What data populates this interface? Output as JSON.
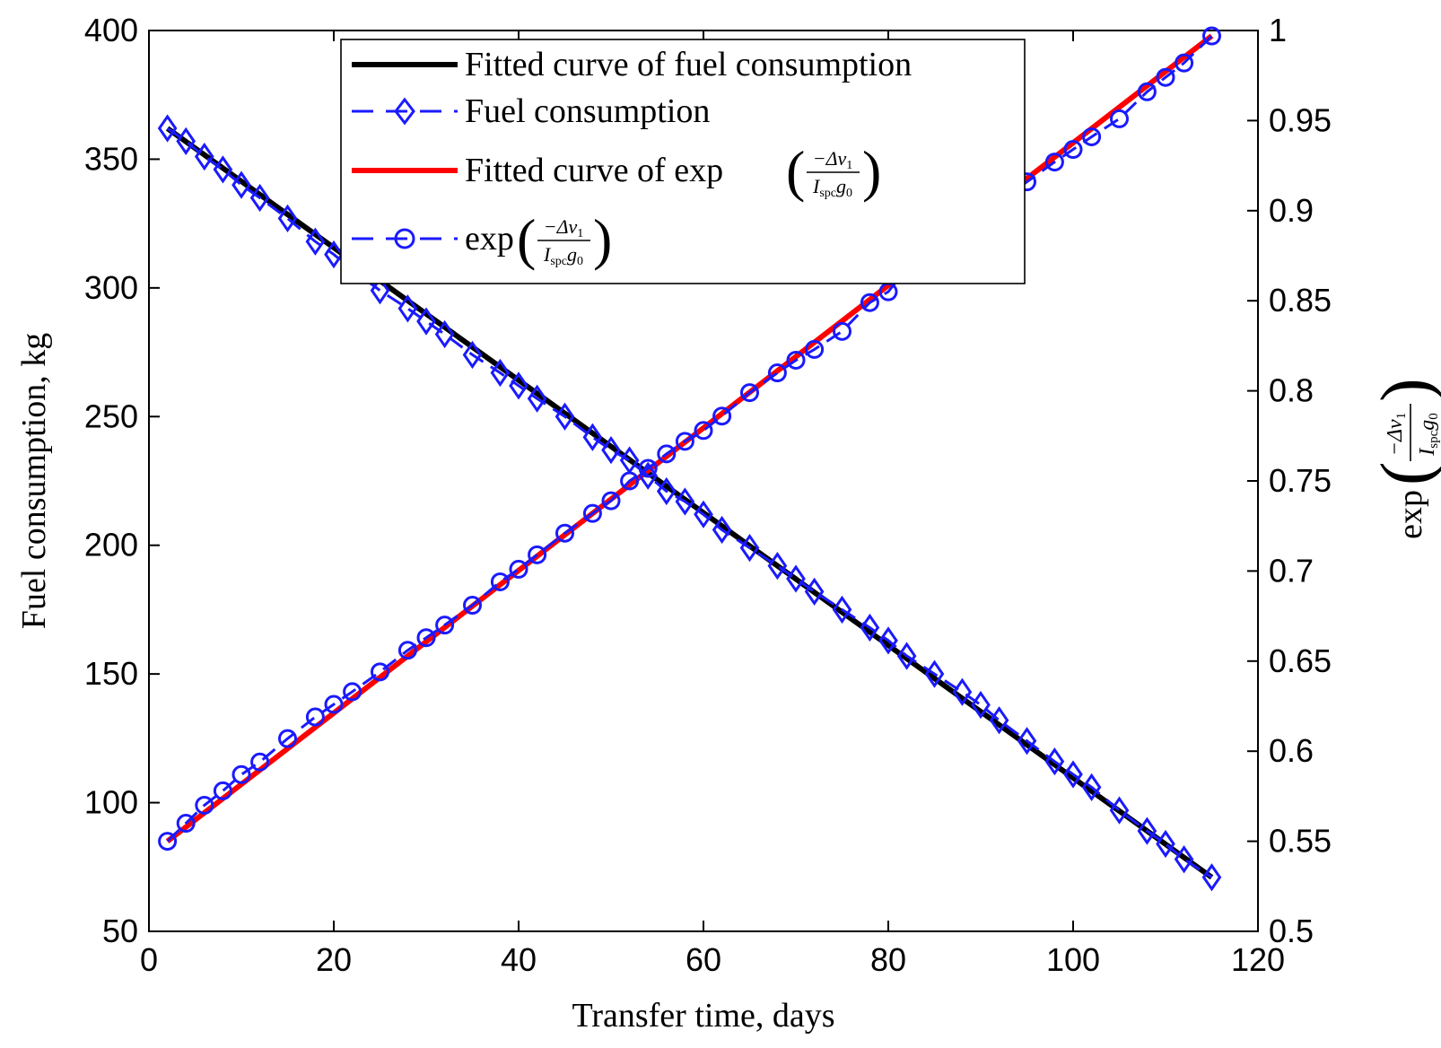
{
  "chart_data": {
    "type": "line",
    "xlabel": "Transfer time, days",
    "ylabel_left": "Fuel consumption, kg",
    "ylabel_right": "exp",
    "xlim": [
      0,
      120
    ],
    "ylim_left": [
      50,
      400
    ],
    "ylim_right": [
      0.5,
      1.0
    ],
    "x_ticks": [
      "0",
      "20",
      "40",
      "60",
      "80",
      "100",
      "120"
    ],
    "y_left_ticks": [
      "50",
      "100",
      "150",
      "200",
      "250",
      "300",
      "350",
      "400"
    ],
    "y_right_ticks": [
      "0.5",
      "0.55",
      "0.6",
      "0.65",
      "0.7",
      "0.75",
      "0.8",
      "0.85",
      "0.9",
      "0.95",
      "1"
    ],
    "grid": false,
    "legend_position": "top-center",
    "legend": [
      {
        "label": "Fitted curve of fuel consumption",
        "style": "solid",
        "color": "#000000",
        "marker": "none"
      },
      {
        "label": "Fuel consumption",
        "style": "dashed",
        "color": "#1a1aff",
        "marker": "diamond"
      },
      {
        "label": "Fitted curve of exp",
        "style": "solid",
        "color": "#ff0000",
        "marker": "none"
      },
      {
        "label": "exp",
        "style": "dashed",
        "color": "#1a1aff",
        "marker": "circle"
      }
    ],
    "math": {
      "numerator": "−Δv",
      "sub1": "1",
      "denominator": "I",
      "sub_spc": "spc",
      "g": "g",
      "sub0": "0"
    },
    "x": [
      2,
      4,
      6,
      8,
      10,
      12,
      15,
      18,
      20,
      22,
      25,
      28,
      30,
      32,
      35,
      38,
      40,
      42,
      45,
      48,
      50,
      52,
      54,
      56,
      58,
      60,
      62,
      65,
      68,
      70,
      72,
      75,
      78,
      80,
      82,
      85,
      88,
      90,
      92,
      95,
      98,
      100,
      102,
      105,
      108,
      110,
      112,
      115
    ],
    "fuel_consumption_axis": "left",
    "fuel_consumption": [
      362,
      357,
      351,
      346,
      340,
      335,
      327,
      318,
      313,
      307,
      299,
      292,
      287,
      282,
      274,
      267,
      262,
      257,
      250,
      242,
      237,
      233,
      227,
      221,
      217,
      212,
      206,
      199,
      192,
      187,
      182,
      175,
      168,
      163,
      157,
      150,
      143,
      138,
      132,
      124,
      116,
      111,
      106,
      97,
      89,
      84,
      78,
      71
    ],
    "fitted_fuel_consumption": {
      "x": [
        2,
        115
      ],
      "y": [
        362,
        71
      ]
    },
    "exp_axis": "right",
    "exp_values": [
      0.55,
      0.56,
      0.57,
      0.578,
      0.587,
      0.594,
      0.607,
      0.619,
      0.626,
      0.633,
      0.644,
      0.656,
      0.663,
      0.67,
      0.681,
      0.694,
      0.701,
      0.709,
      0.721,
      0.732,
      0.739,
      0.75,
      0.757,
      0.765,
      0.772,
      0.778,
      0.786,
      0.799,
      0.81,
      0.817,
      0.823,
      0.833,
      0.849,
      0.855,
      0.868,
      0.88,
      0.891,
      0.898,
      0.905,
      0.916,
      0.927,
      0.934,
      0.941,
      0.951,
      0.966,
      0.974,
      0.982,
      0.997
    ],
    "fitted_exp": {
      "x": [
        2,
        115
      ],
      "y": [
        0.55,
        0.997
      ]
    }
  }
}
